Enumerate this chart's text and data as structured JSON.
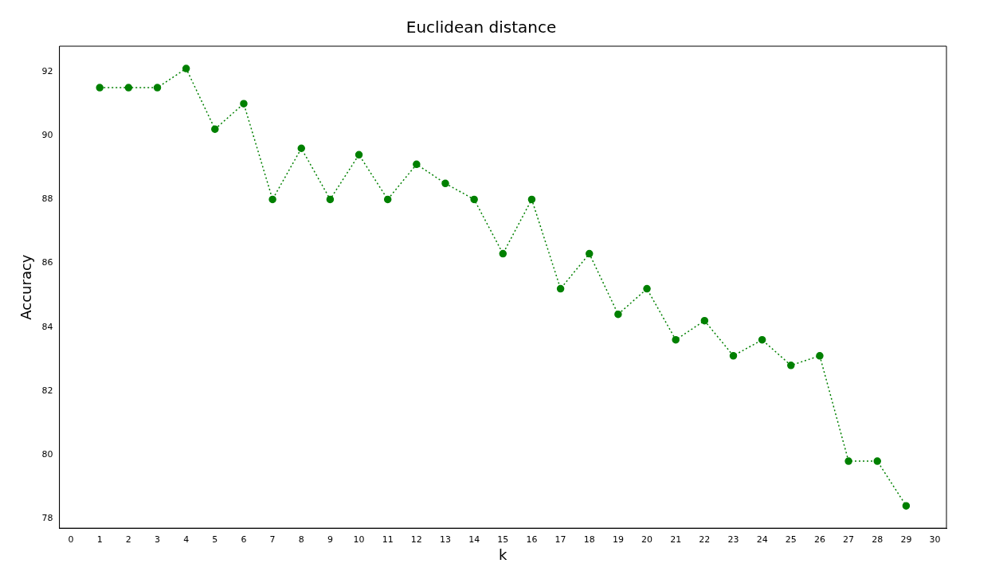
{
  "chart_data": {
    "type": "line",
    "title": "Euclidean distance",
    "xlabel": "k",
    "ylabel": "Accuracy",
    "x": [
      1,
      2,
      3,
      4,
      5,
      6,
      7,
      8,
      9,
      10,
      11,
      12,
      13,
      14,
      15,
      16,
      17,
      18,
      19,
      20,
      21,
      22,
      23,
      24,
      25,
      26,
      27,
      28,
      29
    ],
    "series": [
      {
        "color": "#008000",
        "values": [
          91.5,
          91.5,
          91.5,
          92.1,
          90.2,
          91.0,
          88.0,
          89.6,
          88.0,
          89.4,
          88.0,
          89.1,
          88.5,
          88.0,
          86.3,
          88.0,
          85.2,
          86.3,
          84.4,
          85.2,
          83.6,
          84.2,
          83.1,
          83.6,
          82.8,
          83.1,
          79.8,
          79.8,
          78.4
        ]
      }
    ],
    "xlim": [
      -0.4,
      30.4
    ],
    "xticks": [
      0,
      1,
      2,
      3,
      4,
      5,
      6,
      7,
      8,
      9,
      10,
      11,
      12,
      13,
      14,
      15,
      16,
      17,
      18,
      19,
      20,
      21,
      22,
      23,
      24,
      25,
      26,
      27,
      28,
      29,
      30
    ],
    "ylim": [
      77.7,
      92.8
    ],
    "yticks": [
      78,
      80,
      82,
      84,
      86,
      88,
      90,
      92
    ],
    "grid": false,
    "legend": false,
    "marker": "circle",
    "line_style": "dotted"
  }
}
